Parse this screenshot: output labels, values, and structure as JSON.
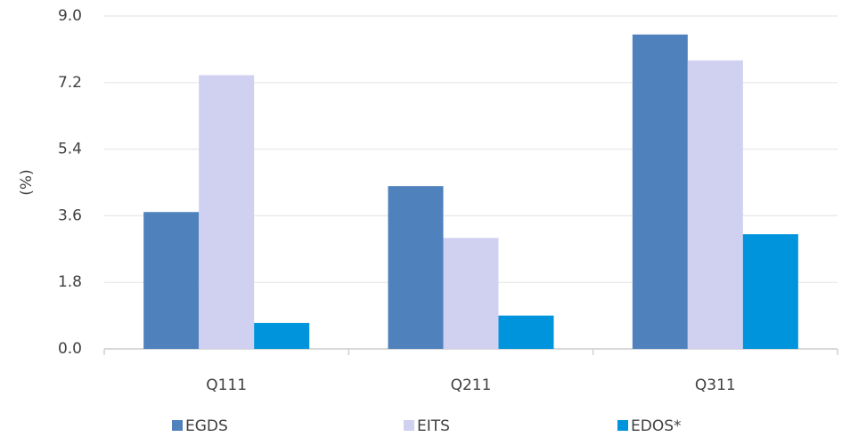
{
  "chart_data": {
    "type": "bar",
    "y_label": "(%)",
    "categories": [
      "Q111",
      "Q211",
      "Q311"
    ],
    "series": [
      {
        "name": "EGDS",
        "color": "#4f81bd",
        "values": [
          3.7,
          4.4,
          8.5
        ]
      },
      {
        "name": "EITS",
        "color": "#d0d0f0",
        "values": [
          7.4,
          3.0,
          7.8
        ]
      },
      {
        "name": "EDOS*",
        "color": "#0094dc",
        "values": [
          0.7,
          0.9,
          3.1
        ]
      }
    ],
    "ylim": [
      0,
      9
    ],
    "yticks": [
      {
        "value": 0,
        "label": "0.0"
      },
      1.8,
      3.6,
      5.4,
      7.2,
      {
        "value": 9,
        "label": "9.0"
      }
    ],
    "grid": true,
    "legend": "bottom"
  }
}
